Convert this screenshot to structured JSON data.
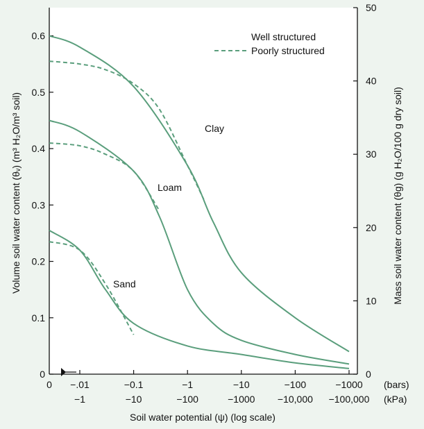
{
  "chart_data": {
    "type": "line",
    "xlabel": "Soil water potential (ψ) (log scale)",
    "ylabel_left": "Volume soil water content (θᵥ) (m³ H₂O/m³ soil)",
    "ylabel_right": "Mass soil water content (θg) (g H₂O/100 g dry soil)",
    "x_scale": "log (soil water potential)",
    "x_ticks_bars": [
      "0",
      "−.01",
      "−0.1",
      "−1",
      "−10",
      "−100",
      "−1000"
    ],
    "x_ticks_kpa": [
      "−1",
      "−10",
      "−100",
      "−1000",
      "−10,000",
      "−100,000"
    ],
    "x_unit_bars": "(bars)",
    "x_unit_kpa": "(kPa)",
    "ylim_left": [
      0,
      0.65
    ],
    "y_ticks_left": [
      "0",
      "0.1",
      "0.2",
      "0.3",
      "0.4",
      "0.5",
      "0.6"
    ],
    "ylim_right": [
      0,
      50
    ],
    "y_ticks_right": [
      "0",
      "10",
      "20",
      "30",
      "40",
      "50"
    ],
    "grid": false,
    "legend_position": "top-right",
    "legend": [
      {
        "label": "Well structured",
        "style": "solid"
      },
      {
        "label": "Poorly structured",
        "style": "dashed"
      }
    ],
    "line_color": "#5a9e7c",
    "series": [
      {
        "soil": "Clay",
        "structure": "well",
        "x": [
          0,
          -0.01,
          -0.1,
          -1,
          -3,
          -10,
          -100,
          -1000
        ],
        "y": [
          0.6,
          0.58,
          0.51,
          0.37,
          0.27,
          0.18,
          0.1,
          0.04
        ]
      },
      {
        "soil": "Clay",
        "structure": "poor",
        "x": [
          0,
          -0.01,
          -0.03,
          -0.1,
          -0.3,
          -1,
          -2
        ],
        "y": [
          0.555,
          0.55,
          0.54,
          0.515,
          0.47,
          0.37,
          0.31
        ]
      },
      {
        "soil": "Loam",
        "structure": "well",
        "x": [
          0,
          -0.01,
          -0.1,
          -0.3,
          -1,
          -3,
          -10,
          -100,
          -1000
        ],
        "y": [
          0.45,
          0.43,
          0.36,
          0.28,
          0.15,
          0.09,
          0.06,
          0.035,
          0.018
        ]
      },
      {
        "soil": "Loam",
        "structure": "poor",
        "x": [
          0,
          -0.01,
          -0.03,
          -0.1,
          -0.3
        ],
        "y": [
          0.41,
          0.405,
          0.39,
          0.36,
          0.29
        ]
      },
      {
        "soil": "Sand",
        "structure": "well",
        "x": [
          0,
          -0.01,
          -0.03,
          -0.1,
          -1,
          -10,
          -100,
          -1000
        ],
        "y": [
          0.255,
          0.22,
          0.15,
          0.09,
          0.05,
          0.035,
          0.02,
          0.01
        ]
      },
      {
        "soil": "Sand",
        "structure": "poor",
        "x": [
          0,
          -0.01,
          -0.03,
          -0.1
        ],
        "y": [
          0.235,
          0.22,
          0.16,
          0.07
        ]
      }
    ],
    "annotations": [
      "Clay",
      "Loam",
      "Sand"
    ]
  }
}
